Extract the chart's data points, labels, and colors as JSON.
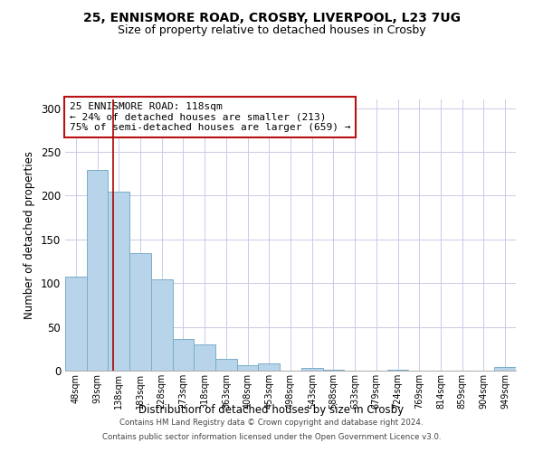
{
  "title1": "25, ENNISMORE ROAD, CROSBY, LIVERPOOL, L23 7UG",
  "title2": "Size of property relative to detached houses in Crosby",
  "xlabel": "Distribution of detached houses by size in Crosby",
  "ylabel": "Number of detached properties",
  "bar_labels": [
    "48sqm",
    "93sqm",
    "138sqm",
    "183sqm",
    "228sqm",
    "273sqm",
    "318sqm",
    "363sqm",
    "408sqm",
    "453sqm",
    "498sqm",
    "543sqm",
    "588sqm",
    "633sqm",
    "679sqm",
    "724sqm",
    "769sqm",
    "814sqm",
    "859sqm",
    "904sqm",
    "949sqm"
  ],
  "bar_values": [
    107,
    229,
    205,
    134,
    104,
    36,
    30,
    13,
    6,
    8,
    0,
    3,
    1,
    0,
    0,
    1,
    0,
    0,
    0,
    0,
    4
  ],
  "bar_color": "#b8d4ea",
  "bar_edge_color": "#7aaec8",
  "vline_x": 1.75,
  "vline_color": "#aa0000",
  "annotation_line1": "25 ENNISMORE ROAD: 118sqm",
  "annotation_line2": "← 24% of detached houses are smaller (213)",
  "annotation_line3": "75% of semi-detached houses are larger (659) →",
  "ylim": [
    0,
    310
  ],
  "yticks": [
    0,
    50,
    100,
    150,
    200,
    250,
    300
  ],
  "footer_line1": "Contains HM Land Registry data © Crown copyright and database right 2024.",
  "footer_line2": "Contains public sector information licensed under the Open Government Licence v3.0.",
  "background_color": "#ffffff",
  "grid_color": "#c8cce8",
  "annotation_box_color": "#ffffff",
  "annotation_box_edge_color": "#bb1111",
  "title1_fontsize": 10,
  "title2_fontsize": 9
}
